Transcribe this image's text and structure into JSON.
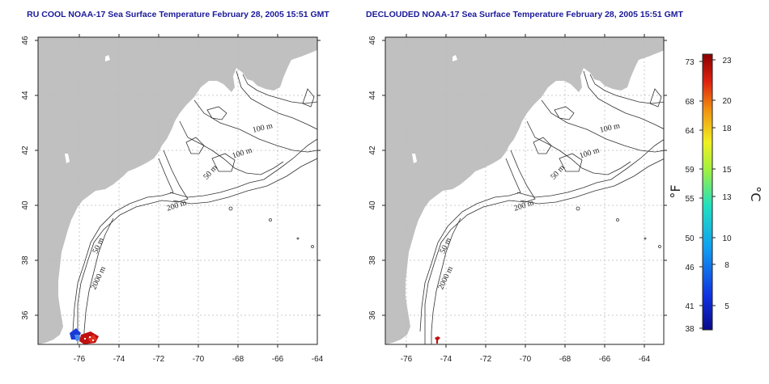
{
  "panels": [
    {
      "title": "RU COOL NOAA-17 Sea Surface Temperature February 28, 2005 15:51 GMT",
      "contour_labels": [
        "100 m",
        "100 m",
        "50 m",
        "200 m",
        "50 m",
        "2000 m"
      ]
    },
    {
      "title": "DECLOUDED NOAA-17 Sea Surface Temperature February 28, 2005 15:51 GMT",
      "contour_labels": [
        "100 m",
        "100 m",
        "50 m",
        "200 m",
        "50 m",
        "2000 m"
      ]
    }
  ],
  "axes": {
    "lon_ticks": [
      "-76",
      "-74",
      "-72",
      "-70",
      "-68",
      "-66",
      "-64"
    ],
    "lat_ticks": [
      "36",
      "38",
      "40",
      "42",
      "44",
      "46"
    ],
    "lon_range": [
      -77.2,
      -63.0
    ],
    "lat_range": [
      35.0,
      46.0
    ]
  },
  "colorbar": {
    "fahrenheit_label": "°F",
    "celsius_label": "°C",
    "fahrenheit_ticks": [
      "73",
      "68",
      "64",
      "59",
      "55",
      "50",
      "46",
      "41",
      "38"
    ],
    "celsius_ticks": [
      "23",
      "20",
      "18",
      "15",
      "13",
      "10",
      "8",
      "5"
    ],
    "range_c": [
      3.3,
      23.3
    ]
  },
  "colors": {
    "land": "#c0c0c0",
    "grid": "#bbbbbb",
    "contour": "#333333",
    "title": "#1a1a9a"
  }
}
